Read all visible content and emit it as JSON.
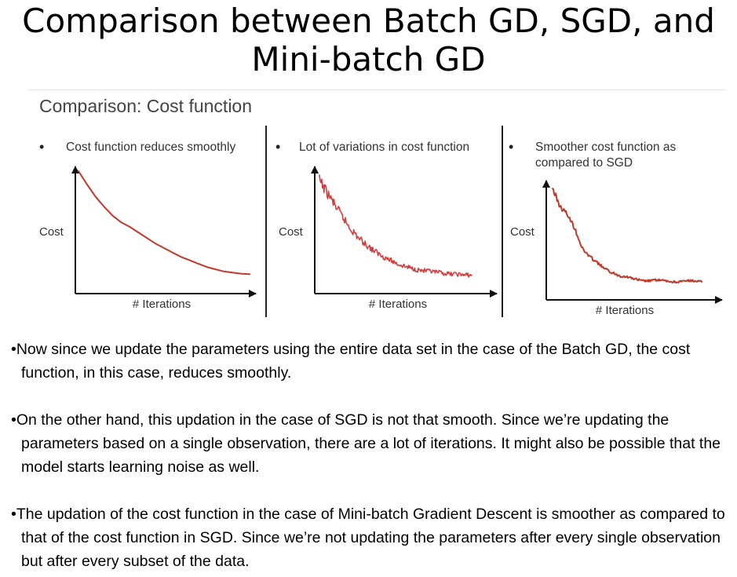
{
  "slide_title": "Comparison between Batch GD, SGD, and Mini-batch GD",
  "figure_heading": "Comparison: Cost function",
  "chart_data": [
    {
      "type": "line",
      "title": "Cost function reduces smoothly",
      "xlabel": "# Iterations",
      "ylabel": "Cost",
      "series": [
        {
          "x": [
            0,
            5,
            10,
            15,
            20,
            25,
            30,
            35,
            40,
            45,
            50,
            55,
            60,
            65,
            70,
            75,
            80,
            85,
            90,
            95,
            100
          ],
          "values": [
            100,
            88,
            77,
            68,
            60,
            54,
            50,
            45,
            40,
            35,
            31,
            27,
            23,
            20,
            17,
            14,
            12,
            10,
            9,
            8,
            7.5
          ]
        }
      ],
      "color": "#c0392b"
    },
    {
      "type": "line",
      "title": "Lot of variations in cost function",
      "xlabel": "# Iterations",
      "ylabel": "Cost",
      "series": [
        {
          "x": [
            0,
            5,
            10,
            15,
            20,
            25,
            30,
            35,
            40,
            45,
            50,
            55,
            60,
            65,
            70,
            75,
            80,
            85,
            90,
            95,
            100
          ],
          "values": [
            100,
            88,
            76,
            64,
            53,
            44,
            37,
            31,
            26,
            22,
            18,
            15,
            13,
            11,
            10,
            9,
            8,
            7,
            7,
            6,
            6
          ]
        }
      ],
      "noise": "high",
      "color": "#d04040"
    },
    {
      "type": "line",
      "title": "Smoother cost function as compared to SGD",
      "xlabel": "# Iterations",
      "ylabel": "Cost",
      "series": [
        {
          "x": [
            0,
            5,
            10,
            15,
            20,
            25,
            30,
            35,
            40,
            45,
            50,
            55,
            60,
            65,
            70,
            75,
            80,
            85,
            90,
            95,
            100
          ],
          "values": [
            100,
            82,
            74,
            60,
            40,
            32,
            26,
            20,
            16,
            13,
            12,
            10,
            8,
            8,
            9,
            8,
            7,
            7,
            8,
            8,
            7
          ]
        }
      ],
      "noise": "medium",
      "color": "#c0392b"
    }
  ],
  "paragraphs": [
    "•Now since we update the parameters using the entire data set in the case of the Batch GD, the cost function, in this case, reduces smoothly.",
    "•On the other hand, this updation in the case of SGD is not that smooth. Since we’re updating the parameters based on a single observation, there are a lot of iterations. It might also be possible that the model starts learning noise as well.",
    "•The updation of the cost function in the case of Mini-batch Gradient Descent is smoother as compared to that of the cost function in SGD. Since we’re not updating the parameters after every single observation but after every subset of the data."
  ]
}
